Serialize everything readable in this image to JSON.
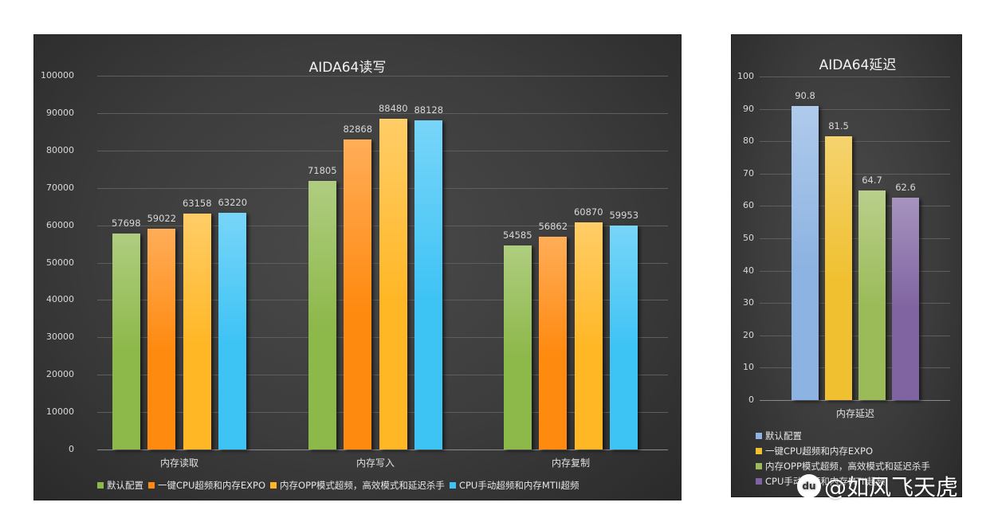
{
  "chart_data": [
    {
      "type": "bar",
      "title": "AIDA64读写",
      "xlabel": "",
      "ylabel": "",
      "ylim": [
        0,
        100000
      ],
      "yticks": [
        0,
        10000,
        20000,
        30000,
        40000,
        50000,
        60000,
        70000,
        80000,
        90000,
        100000
      ],
      "grid": true,
      "legend_position": "bottom",
      "categories": [
        "内存读取",
        "内存写入",
        "内存复制"
      ],
      "series": [
        {
          "name": "默认配置",
          "color": "#8db84a",
          "values": [
            57698,
            71805,
            54585
          ]
        },
        {
          "name": "一键CPU超频和内存EXPO",
          "color": "#ff8a10",
          "values": [
            59022,
            82868,
            56862
          ]
        },
        {
          "name": "内存OPP模式超频，高效模式和延迟杀手",
          "color": "#ffb726",
          "values": [
            63158,
            88480,
            60870
          ]
        },
        {
          "name": "CPU手动超频和内存MTII超频",
          "color": "#3ec3f5",
          "values": [
            63220,
            88128,
            59953
          ]
        }
      ]
    },
    {
      "type": "bar",
      "title": "AIDA64延迟",
      "xlabel": "",
      "ylabel": "",
      "ylim": [
        0,
        100
      ],
      "yticks": [
        0,
        10,
        20,
        30,
        40,
        50,
        60,
        70,
        80,
        90,
        100
      ],
      "grid": true,
      "legend_position": "bottom",
      "categories": [
        "内存延迟"
      ],
      "series": [
        {
          "name": "默认配置",
          "color": "#8db3e2",
          "values": [
            90.8
          ]
        },
        {
          "name": "一键CPU超频和内存EXPO",
          "color": "#f0c030",
          "values": [
            81.5
          ]
        },
        {
          "name": "内存OPP模式超频，高效模式和延迟杀手",
          "color": "#9bbb59",
          "values": [
            64.7
          ]
        },
        {
          "name": "CPU手动超频和内存MTII超频",
          "color": "#8064a2",
          "values": [
            62.6
          ]
        }
      ]
    }
  ],
  "watermark": {
    "logo": "du",
    "text": "@如风飞天虎"
  }
}
